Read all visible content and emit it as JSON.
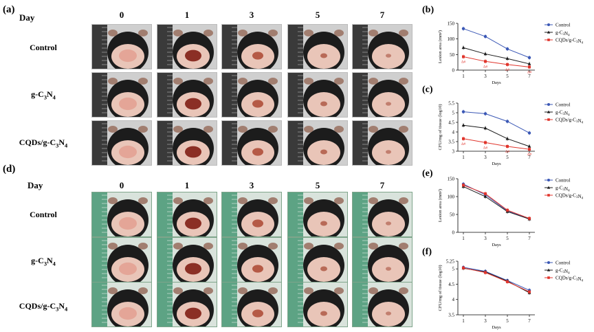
{
  "panels": {
    "a": {
      "label": "(a)",
      "day_header": "Day",
      "days": [
        "0",
        "1",
        "3",
        "5",
        "7"
      ],
      "rows": [
        {
          "label": "Control"
        },
        {
          "label": "g-C3N4"
        },
        {
          "label": "CQDs/g-C3N4"
        }
      ]
    },
    "d": {
      "label": "(d)",
      "day_header": "Day",
      "days": [
        "0",
        "1",
        "3",
        "5",
        "7"
      ],
      "rows": [
        {
          "label": "Control"
        },
        {
          "label": "g-C3N4"
        },
        {
          "label": "CQDs/g-C3N4"
        }
      ]
    }
  },
  "colors": {
    "control": "#3a57b5",
    "gc3n4": "#1a1a1a",
    "cqds": "#e0342b",
    "photo_bg_a": "#2b2b2b",
    "photo_bg_d": "#4f9b7a"
  },
  "chart_data": [
    {
      "id": "b",
      "panel_label": "(b)",
      "type": "line",
      "x": [
        1,
        3,
        5,
        7
      ],
      "xlabel": "Days",
      "ylabel": "Lesion area (mm²)",
      "ylim": [
        0,
        150
      ],
      "yticks": [
        0,
        50,
        100,
        150
      ],
      "xticks": [
        1,
        3,
        5,
        7
      ],
      "legend_position": "top-right",
      "series": [
        {
          "name": "Control",
          "values": [
            133,
            108,
            68,
            40
          ]
        },
        {
          "name": "g-C3N4",
          "values": [
            72,
            52,
            37,
            20
          ]
        },
        {
          "name": "CQDs/g-C3N4",
          "values": [
            43,
            28,
            18,
            10
          ]
        }
      ],
      "annotations": [
        "Δ#",
        "Δ#",
        "Δ#",
        "Δ#"
      ]
    },
    {
      "id": "c",
      "panel_label": "(c)",
      "type": "line",
      "x": [
        1,
        3,
        5,
        7
      ],
      "xlabel": "Days",
      "ylabel": "CFU/mg of tissue (log10)",
      "ylim": [
        3,
        5.5
      ],
      "yticks": [
        3.0,
        3.5,
        4.0,
        4.5,
        5.0,
        5.5
      ],
      "xticks": [
        1,
        3,
        5,
        7
      ],
      "legend_position": "top-right",
      "series": [
        {
          "name": "Control",
          "values": [
            5.05,
            4.95,
            4.55,
            3.95
          ]
        },
        {
          "name": "g-C3N4",
          "values": [
            4.35,
            4.2,
            3.65,
            3.25
          ]
        },
        {
          "name": "CQDs/g-C3N4",
          "values": [
            3.65,
            3.45,
            3.25,
            3.1
          ]
        }
      ],
      "annotations": [
        "Δ#",
        "Δ#",
        "Δ#",
        "Δ#"
      ]
    },
    {
      "id": "e",
      "panel_label": "(e)",
      "type": "line",
      "x": [
        1,
        3,
        5,
        7
      ],
      "xlabel": "Days",
      "ylabel": "Lesion area (mm²)",
      "ylim": [
        0,
        150
      ],
      "yticks": [
        0,
        50,
        100,
        150
      ],
      "xticks": [
        1,
        3,
        5,
        7
      ],
      "legend_position": "top-right",
      "series": [
        {
          "name": "Control",
          "values": [
            135,
            105,
            60,
            38
          ]
        },
        {
          "name": "g-C3N4",
          "values": [
            128,
            100,
            58,
            37
          ]
        },
        {
          "name": "CQDs/g-C3N4",
          "values": [
            132,
            108,
            62,
            39
          ]
        }
      ]
    },
    {
      "id": "f",
      "panel_label": "(f)",
      "type": "line",
      "x": [
        1,
        3,
        5,
        7
      ],
      "xlabel": "Days",
      "ylabel": "CFU/mg of tissue (log10)",
      "ylim": [
        3.5,
        5.25
      ],
      "yticks": [
        3.5,
        4.0,
        4.5,
        5.0,
        5.25
      ],
      "xticks": [
        1,
        3,
        5,
        7
      ],
      "legend_position": "top-right",
      "series": [
        {
          "name": "Control",
          "values": [
            5.05,
            4.92,
            4.62,
            4.3
          ]
        },
        {
          "name": "g-C3N4",
          "values": [
            5.02,
            4.9,
            4.6,
            4.22
          ]
        },
        {
          "name": "CQDs/g-C3N4",
          "values": [
            5.03,
            4.88,
            4.58,
            4.25
          ]
        }
      ]
    }
  ]
}
